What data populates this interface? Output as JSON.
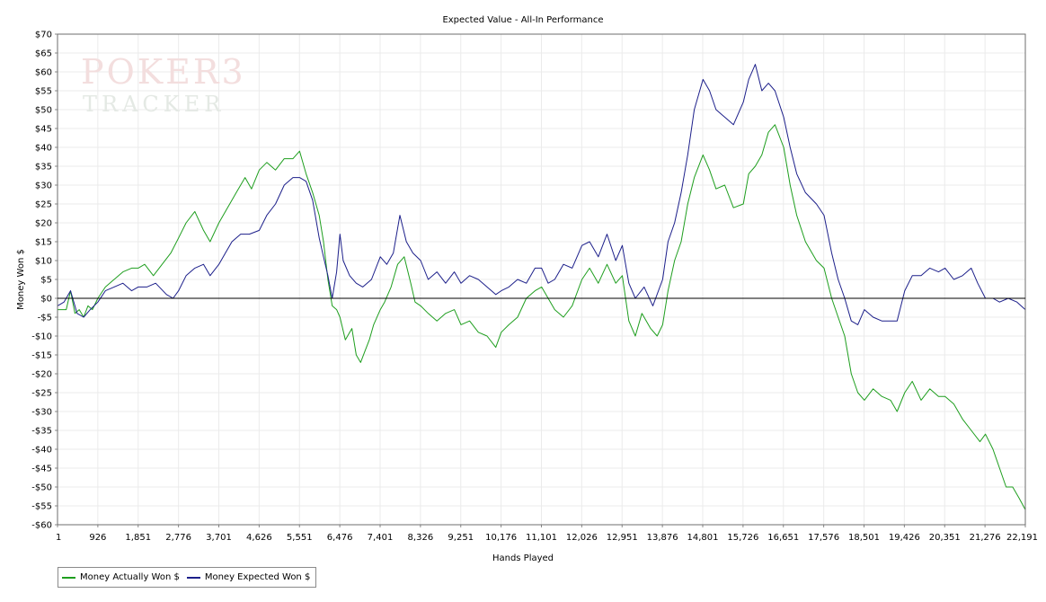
{
  "chart_data": {
    "type": "line",
    "title": "Expected Value - All-In Performance",
    "xlabel": "Hands Played",
    "ylabel": "Money Won $",
    "xlim": [
      1,
      22191
    ],
    "ylim": [
      -60,
      70
    ],
    "x_ticks": [
      "1",
      "926",
      "1,851",
      "2,776",
      "3,701",
      "4,626",
      "5,551",
      "6,476",
      "7,401",
      "8,326",
      "9,251",
      "10,176",
      "11,101",
      "12,026",
      "12,951",
      "13,876",
      "14,801",
      "15,726",
      "16,651",
      "17,576",
      "18,501",
      "19,426",
      "20,351",
      "21,276",
      "22,191"
    ],
    "y_ticks": [
      70,
      65,
      60,
      55,
      50,
      45,
      40,
      35,
      30,
      25,
      20,
      15,
      10,
      5,
      0,
      -5,
      -10,
      -15,
      -20,
      -25,
      -30,
      -35,
      -40,
      -45,
      -50,
      -55,
      -60
    ],
    "grid": true,
    "legend_position": "bottom-left",
    "series": [
      {
        "name": "Money Actually Won $",
        "color": "#1e9e1e",
        "points": [
          [
            1,
            -3
          ],
          [
            200,
            -3
          ],
          [
            300,
            2
          ],
          [
            400,
            -4
          ],
          [
            500,
            -3
          ],
          [
            600,
            -5
          ],
          [
            700,
            -2
          ],
          [
            800,
            -3
          ],
          [
            926,
            0
          ],
          [
            1100,
            3
          ],
          [
            1300,
            5
          ],
          [
            1500,
            7
          ],
          [
            1700,
            8
          ],
          [
            1851,
            8
          ],
          [
            2000,
            9
          ],
          [
            2200,
            6
          ],
          [
            2400,
            9
          ],
          [
            2600,
            12
          ],
          [
            2776,
            16
          ],
          [
            2950,
            20
          ],
          [
            3150,
            23
          ],
          [
            3350,
            18
          ],
          [
            3500,
            15
          ],
          [
            3701,
            20
          ],
          [
            3900,
            24
          ],
          [
            4100,
            28
          ],
          [
            4300,
            32
          ],
          [
            4450,
            29
          ],
          [
            4626,
            34
          ],
          [
            4800,
            36
          ],
          [
            5000,
            34
          ],
          [
            5200,
            37
          ],
          [
            5400,
            37
          ],
          [
            5551,
            39
          ],
          [
            5700,
            33
          ],
          [
            5850,
            28
          ],
          [
            6000,
            22
          ],
          [
            6100,
            15
          ],
          [
            6200,
            5
          ],
          [
            6300,
            -2
          ],
          [
            6400,
            -3
          ],
          [
            6476,
            -5
          ],
          [
            6600,
            -11
          ],
          [
            6750,
            -8
          ],
          [
            6850,
            -15
          ],
          [
            6950,
            -17
          ],
          [
            7050,
            -14
          ],
          [
            7150,
            -11
          ],
          [
            7250,
            -7
          ],
          [
            7401,
            -3
          ],
          [
            7500,
            -1
          ],
          [
            7650,
            3
          ],
          [
            7800,
            9
          ],
          [
            7950,
            11
          ],
          [
            8100,
            4
          ],
          [
            8200,
            -1
          ],
          [
            8326,
            -2
          ],
          [
            8500,
            -4
          ],
          [
            8700,
            -6
          ],
          [
            8900,
            -4
          ],
          [
            9100,
            -3
          ],
          [
            9251,
            -7
          ],
          [
            9450,
            -6
          ],
          [
            9650,
            -9
          ],
          [
            9850,
            -10
          ],
          [
            10050,
            -13
          ],
          [
            10176,
            -9
          ],
          [
            10350,
            -7
          ],
          [
            10550,
            -5
          ],
          [
            10750,
            0
          ],
          [
            10950,
            2
          ],
          [
            11101,
            3
          ],
          [
            11250,
            0
          ],
          [
            11400,
            -3
          ],
          [
            11600,
            -5
          ],
          [
            11800,
            -2
          ],
          [
            12026,
            5
          ],
          [
            12200,
            8
          ],
          [
            12400,
            4
          ],
          [
            12600,
            9
          ],
          [
            12800,
            4
          ],
          [
            12951,
            6
          ],
          [
            13100,
            -6
          ],
          [
            13250,
            -10
          ],
          [
            13400,
            -4
          ],
          [
            13600,
            -8
          ],
          [
            13750,
            -10
          ],
          [
            13876,
            -7
          ],
          [
            14000,
            2
          ],
          [
            14150,
            10
          ],
          [
            14300,
            15
          ],
          [
            14450,
            25
          ],
          [
            14600,
            32
          ],
          [
            14801,
            38
          ],
          [
            14950,
            34
          ],
          [
            15100,
            29
          ],
          [
            15300,
            30
          ],
          [
            15500,
            24
          ],
          [
            15726,
            25
          ],
          [
            15850,
            33
          ],
          [
            16000,
            35
          ],
          [
            16150,
            38
          ],
          [
            16300,
            44
          ],
          [
            16450,
            46
          ],
          [
            16651,
            40
          ],
          [
            16800,
            30
          ],
          [
            16950,
            22
          ],
          [
            17150,
            15
          ],
          [
            17400,
            10
          ],
          [
            17576,
            8
          ],
          [
            17750,
            0
          ],
          [
            17900,
            -5
          ],
          [
            18050,
            -10
          ],
          [
            18200,
            -20
          ],
          [
            18350,
            -25
          ],
          [
            18501,
            -27
          ],
          [
            18700,
            -24
          ],
          [
            18900,
            -26
          ],
          [
            19100,
            -27
          ],
          [
            19250,
            -30
          ],
          [
            19426,
            -25
          ],
          [
            19600,
            -22
          ],
          [
            19800,
            -27
          ],
          [
            20000,
            -24
          ],
          [
            20200,
            -26
          ],
          [
            20351,
            -26
          ],
          [
            20550,
            -28
          ],
          [
            20750,
            -32
          ],
          [
            20950,
            -35
          ],
          [
            21150,
            -38
          ],
          [
            21276,
            -36
          ],
          [
            21450,
            -40
          ],
          [
            21600,
            -45
          ],
          [
            21750,
            -50
          ],
          [
            21900,
            -50
          ],
          [
            22050,
            -53
          ],
          [
            22191,
            -56
          ]
        ]
      },
      {
        "name": "Money Expected Won $",
        "color": "#1c1f8a",
        "points": [
          [
            1,
            -2
          ],
          [
            150,
            -1
          ],
          [
            300,
            2
          ],
          [
            450,
            -4
          ],
          [
            600,
            -5
          ],
          [
            750,
            -3
          ],
          [
            926,
            -1
          ],
          [
            1100,
            2
          ],
          [
            1300,
            3
          ],
          [
            1500,
            4
          ],
          [
            1700,
            2
          ],
          [
            1851,
            3
          ],
          [
            2050,
            3
          ],
          [
            2250,
            4
          ],
          [
            2500,
            1
          ],
          [
            2650,
            0
          ],
          [
            2776,
            2
          ],
          [
            2950,
            6
          ],
          [
            3150,
            8
          ],
          [
            3350,
            9
          ],
          [
            3500,
            6
          ],
          [
            3701,
            9
          ],
          [
            3850,
            12
          ],
          [
            4000,
            15
          ],
          [
            4200,
            17
          ],
          [
            4400,
            17
          ],
          [
            4626,
            18
          ],
          [
            4800,
            22
          ],
          [
            5000,
            25
          ],
          [
            5200,
            30
          ],
          [
            5400,
            32
          ],
          [
            5551,
            32
          ],
          [
            5700,
            31
          ],
          [
            5850,
            26
          ],
          [
            6000,
            16
          ],
          [
            6100,
            11
          ],
          [
            6200,
            6
          ],
          [
            6300,
            0
          ],
          [
            6400,
            7
          ],
          [
            6476,
            17
          ],
          [
            6550,
            10
          ],
          [
            6700,
            6
          ],
          [
            6850,
            4
          ],
          [
            7000,
            3
          ],
          [
            7200,
            5
          ],
          [
            7401,
            11
          ],
          [
            7550,
            9
          ],
          [
            7700,
            12
          ],
          [
            7850,
            22
          ],
          [
            8000,
            15
          ],
          [
            8150,
            12
          ],
          [
            8326,
            10
          ],
          [
            8500,
            5
          ],
          [
            8700,
            7
          ],
          [
            8900,
            4
          ],
          [
            9100,
            7
          ],
          [
            9251,
            4
          ],
          [
            9450,
            6
          ],
          [
            9650,
            5
          ],
          [
            9850,
            3
          ],
          [
            10050,
            1
          ],
          [
            10176,
            2
          ],
          [
            10350,
            3
          ],
          [
            10550,
            5
          ],
          [
            10750,
            4
          ],
          [
            10950,
            8
          ],
          [
            11101,
            8
          ],
          [
            11250,
            4
          ],
          [
            11400,
            5
          ],
          [
            11600,
            9
          ],
          [
            11800,
            8
          ],
          [
            12026,
            14
          ],
          [
            12200,
            15
          ],
          [
            12400,
            11
          ],
          [
            12600,
            17
          ],
          [
            12800,
            10
          ],
          [
            12951,
            14
          ],
          [
            13100,
            4
          ],
          [
            13250,
            0
          ],
          [
            13450,
            3
          ],
          [
            13650,
            -2
          ],
          [
            13876,
            5
          ],
          [
            14000,
            15
          ],
          [
            14150,
            20
          ],
          [
            14300,
            28
          ],
          [
            14450,
            38
          ],
          [
            14600,
            50
          ],
          [
            14801,
            58
          ],
          [
            14950,
            55
          ],
          [
            15100,
            50
          ],
          [
            15300,
            48
          ],
          [
            15500,
            46
          ],
          [
            15726,
            52
          ],
          [
            15850,
            58
          ],
          [
            16000,
            62
          ],
          [
            16150,
            55
          ],
          [
            16300,
            57
          ],
          [
            16450,
            55
          ],
          [
            16651,
            48
          ],
          [
            16800,
            40
          ],
          [
            16950,
            33
          ],
          [
            17150,
            28
          ],
          [
            17400,
            25
          ],
          [
            17576,
            22
          ],
          [
            17750,
            12
          ],
          [
            17900,
            5
          ],
          [
            18050,
            0
          ],
          [
            18200,
            -6
          ],
          [
            18350,
            -7
          ],
          [
            18501,
            -3
          ],
          [
            18700,
            -5
          ],
          [
            18900,
            -6
          ],
          [
            19100,
            -6
          ],
          [
            19250,
            -6
          ],
          [
            19426,
            2
          ],
          [
            19600,
            6
          ],
          [
            19800,
            6
          ],
          [
            20000,
            8
          ],
          [
            20200,
            7
          ],
          [
            20351,
            8
          ],
          [
            20550,
            5
          ],
          [
            20750,
            6
          ],
          [
            20950,
            8
          ],
          [
            21100,
            4
          ],
          [
            21276,
            0
          ],
          [
            21450,
            0
          ],
          [
            21600,
            -1
          ],
          [
            21800,
            0
          ],
          [
            22000,
            -1
          ],
          [
            22191,
            -3
          ]
        ]
      }
    ]
  },
  "watermark": {
    "line1": "POKER3",
    "line2": "TRACKER"
  }
}
